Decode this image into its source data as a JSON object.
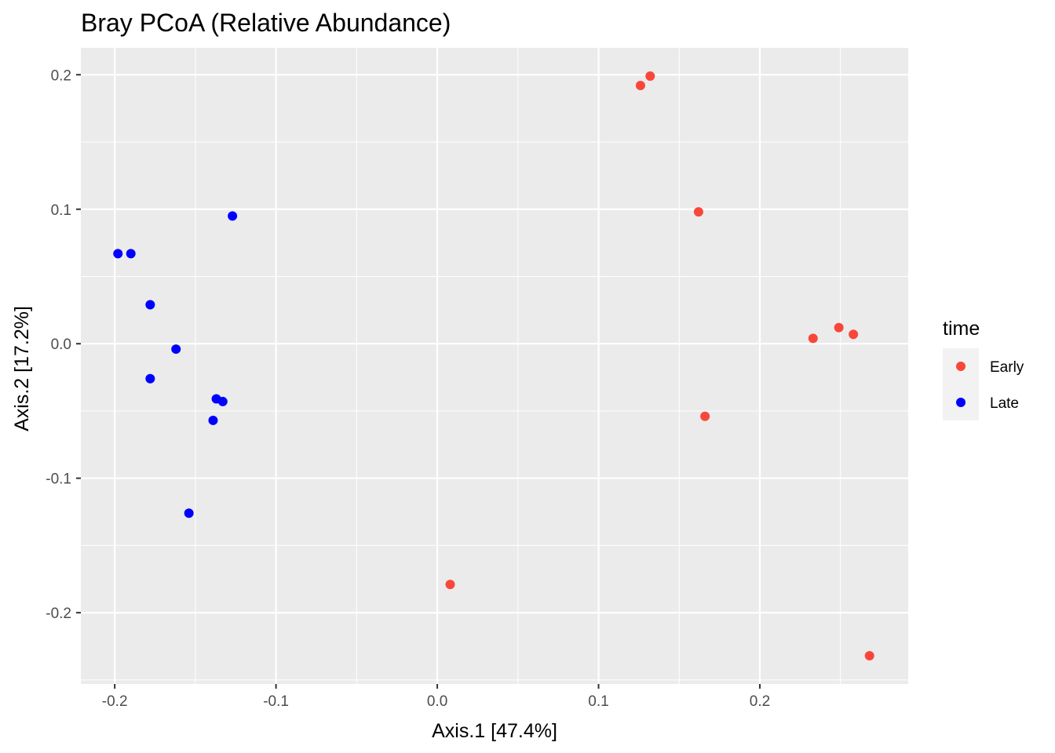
{
  "chart_data": {
    "type": "scatter",
    "title": "Bray PCoA (Relative Abundance)",
    "xlabel": "Axis.1   [47.4%]",
    "ylabel": "Axis.2   [17.2%]",
    "xlim": [
      -0.221,
      0.292
    ],
    "ylim": [
      -0.253,
      0.22
    ],
    "x_ticks": [
      -0.2,
      -0.1,
      0.0,
      0.1,
      0.2
    ],
    "x_tick_labels": [
      "-0.2",
      "-0.1",
      "0.0",
      "0.1",
      "0.2"
    ],
    "y_ticks": [
      -0.2,
      -0.1,
      0.0,
      0.1,
      0.2
    ],
    "y_tick_labels": [
      "-0.2",
      "-0.1",
      "0.0",
      "0.1",
      "0.2"
    ],
    "grid": true,
    "legend": {
      "title": "time",
      "position": "right"
    },
    "series": [
      {
        "name": "Early",
        "color": "#F8473A",
        "points": [
          {
            "x": 0.126,
            "y": 0.192
          },
          {
            "x": 0.132,
            "y": 0.199
          },
          {
            "x": 0.162,
            "y": 0.098
          },
          {
            "x": 0.233,
            "y": 0.004
          },
          {
            "x": 0.249,
            "y": 0.012
          },
          {
            "x": 0.258,
            "y": 0.007
          },
          {
            "x": 0.166,
            "y": -0.054
          },
          {
            "x": 0.008,
            "y": -0.179
          },
          {
            "x": 0.268,
            "y": -0.232
          }
        ]
      },
      {
        "name": "Late",
        "color": "#0000FF",
        "points": [
          {
            "x": -0.198,
            "y": 0.067
          },
          {
            "x": -0.19,
            "y": 0.067
          },
          {
            "x": -0.127,
            "y": 0.095
          },
          {
            "x": -0.178,
            "y": 0.029
          },
          {
            "x": -0.162,
            "y": -0.004
          },
          {
            "x": -0.178,
            "y": -0.026
          },
          {
            "x": -0.137,
            "y": -0.041
          },
          {
            "x": -0.133,
            "y": -0.043
          },
          {
            "x": -0.139,
            "y": -0.057
          },
          {
            "x": -0.154,
            "y": -0.126
          }
        ]
      }
    ],
    "panel_background": "#EBEBEB",
    "grid_color": "#FFFFFF"
  }
}
